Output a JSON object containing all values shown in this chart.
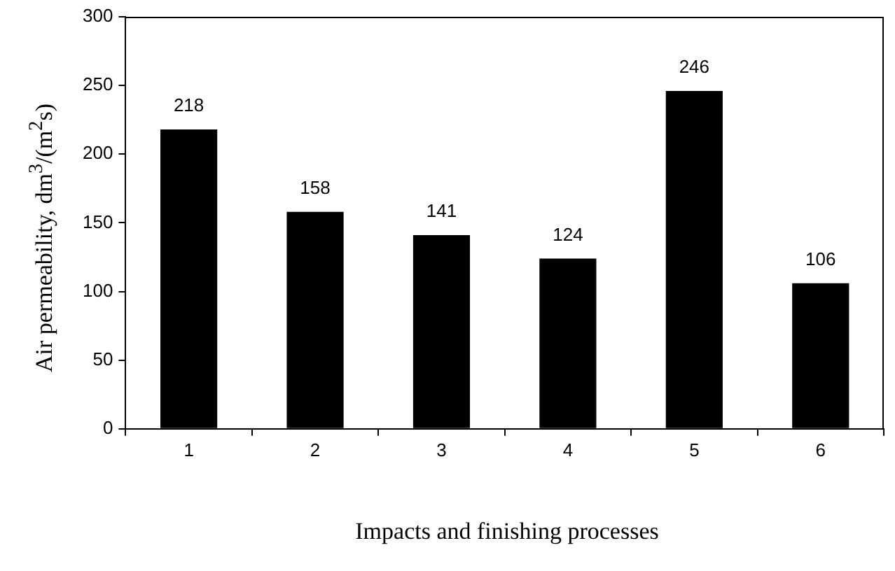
{
  "chart_data": {
    "type": "bar",
    "xlabel": "Impacts and finishing processes",
    "ylabel": "Air permeability, dm$^{3}$/(m$^{2}$s)",
    "categories": [
      "1",
      "2",
      "3",
      "4",
      "5",
      "6"
    ],
    "values": [
      218,
      158,
      141,
      124,
      246,
      106
    ],
    "color": "#000000",
    "ylim": [
      0,
      300
    ],
    "yticks": [
      0,
      50,
      100,
      150,
      200,
      250,
      300
    ],
    "grid": false,
    "legend": false,
    "data_labels": true
  }
}
